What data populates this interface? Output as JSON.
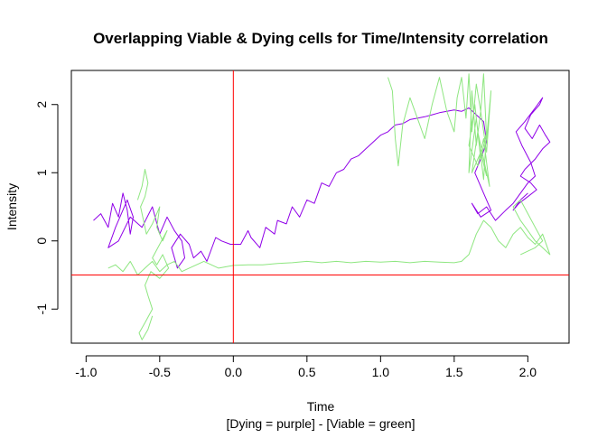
{
  "chart_data": {
    "type": "line",
    "title": "Overlapping Viable & Dying cells for Time/Intensity correlation",
    "xlabel": "Time",
    "xlabel_sub": "[Dying = purple] - [Viable = green]",
    "ylabel": "Intensity",
    "xlim": [
      -1.1,
      2.28
    ],
    "ylim": [
      -1.5,
      2.5
    ],
    "x_ticks": [
      -1.0,
      -0.5,
      0.0,
      0.5,
      1.0,
      1.5,
      2.0
    ],
    "x_tick_labels": [
      "-1.0",
      "-0.5",
      "0.0",
      "0.5",
      "1.0",
      "1.5",
      "2.0"
    ],
    "y_ticks": [
      -1,
      0,
      1,
      2
    ],
    "y_tick_labels": [
      "-1",
      "0",
      "1",
      "2"
    ],
    "grid": false,
    "reference_lines": [
      {
        "orientation": "vertical",
        "value": 0.0,
        "color": "#ff0000"
      },
      {
        "orientation": "horizontal",
        "value": -0.5,
        "color": "#ff0000"
      }
    ],
    "series": [
      {
        "color": "#9000e8",
        "x": [
          -0.95,
          -0.9,
          -0.85,
          -0.82,
          -0.78,
          -0.75,
          -0.72,
          -0.7,
          -0.68,
          -0.72,
          -0.8,
          -0.85,
          -0.78,
          -0.7,
          -0.62,
          -0.55,
          -0.5,
          -0.45,
          -0.4,
          -0.35,
          -0.33,
          -0.38,
          -0.42,
          -0.36,
          -0.3,
          -0.27,
          -0.22,
          -0.18,
          -0.12,
          -0.08,
          -0.02,
          0.05,
          0.1,
          0.12,
          0.18,
          0.22,
          0.28,
          0.3,
          0.36,
          0.4,
          0.45,
          0.5,
          0.55,
          0.6,
          0.65,
          0.7,
          0.75,
          0.8,
          0.85,
          0.9,
          0.95,
          1.0,
          1.05,
          1.1,
          1.15,
          1.2,
          1.25,
          1.3,
          1.35,
          1.4,
          1.45,
          1.5,
          1.55,
          1.6,
          1.65,
          1.7,
          1.72,
          1.68,
          1.64,
          1.7,
          1.75,
          1.68,
          1.62,
          1.66,
          1.72,
          1.78,
          1.85,
          1.9,
          1.95,
          2.0,
          2.05,
          2.02,
          1.96,
          1.92,
          1.98,
          2.05,
          2.1,
          2.08,
          2.02,
          1.98,
          2.03,
          2.08,
          2.12,
          2.15,
          2.1,
          2.05,
          1.98,
          1.95,
          2.02,
          2.06,
          2.0,
          1.94,
          1.9,
          1.95,
          2.0
        ],
        "y": [
          0.3,
          0.4,
          0.2,
          0.55,
          0.35,
          0.7,
          0.45,
          0.1,
          0.35,
          0.6,
          0.2,
          -0.1,
          0.0,
          0.35,
          0.2,
          0.5,
          0.1,
          0.35,
          0.15,
          0.0,
          -0.25,
          -0.4,
          -0.1,
          0.1,
          -0.05,
          -0.25,
          -0.15,
          -0.3,
          0.05,
          0.0,
          -0.05,
          -0.05,
          0.15,
          0.05,
          -0.1,
          0.2,
          0.1,
          0.3,
          0.25,
          0.5,
          0.35,
          0.6,
          0.55,
          0.85,
          0.8,
          1.0,
          1.05,
          1.2,
          1.25,
          1.35,
          1.45,
          1.55,
          1.6,
          1.7,
          1.72,
          1.78,
          1.8,
          1.82,
          1.85,
          1.88,
          1.9,
          1.92,
          1.9,
          1.95,
          1.85,
          1.75,
          1.45,
          1.2,
          1.0,
          0.7,
          0.45,
          0.35,
          0.55,
          0.4,
          0.5,
          0.3,
          0.45,
          0.55,
          0.7,
          0.85,
          0.95,
          1.15,
          1.4,
          1.6,
          1.75,
          1.95,
          2.1,
          2.0,
          1.85,
          1.65,
          1.5,
          1.7,
          1.55,
          1.45,
          1.35,
          1.2,
          1.05,
          0.95,
          0.85,
          0.75,
          0.65,
          0.55,
          0.45,
          0.6,
          0.7
        ]
      },
      {
        "color": "#8ee680",
        "x": [
          -0.85,
          -0.8,
          -0.75,
          -0.7,
          -0.65,
          -0.6,
          -0.55,
          -0.5,
          -0.45,
          -0.4,
          -0.35,
          -0.3,
          -0.25,
          -0.2,
          -0.15,
          -0.1,
          -0.05,
          0.0,
          0.1,
          0.2,
          0.3,
          0.4,
          0.5,
          0.6,
          0.7,
          0.8,
          0.9,
          1.0,
          1.1,
          1.2,
          1.3,
          1.4,
          1.5,
          1.55,
          1.6,
          1.65,
          1.7,
          1.75,
          1.8,
          1.85,
          1.9,
          1.95,
          2.0,
          2.05,
          2.1,
          2.15,
          2.1,
          2.05,
          2.0,
          1.95,
          1.9,
          1.95,
          2.0,
          2.05,
          2.1,
          2.05,
          2.0,
          1.95
        ],
        "y": [
          -0.4,
          -0.35,
          -0.45,
          -0.3,
          -0.5,
          -0.4,
          -0.3,
          -0.45,
          -0.35,
          -0.3,
          -0.45,
          -0.4,
          -0.35,
          -0.3,
          -0.35,
          -0.4,
          -0.38,
          -0.36,
          -0.35,
          -0.35,
          -0.33,
          -0.32,
          -0.3,
          -0.32,
          -0.3,
          -0.32,
          -0.3,
          -0.31,
          -0.3,
          -0.32,
          -0.3,
          -0.31,
          -0.32,
          -0.3,
          -0.2,
          0.1,
          0.3,
          0.2,
          0.0,
          -0.1,
          0.1,
          0.2,
          0.05,
          -0.05,
          0.1,
          -0.2,
          -0.1,
          0.0,
          0.15,
          0.3,
          0.5,
          0.6,
          0.4,
          0.2,
          0.0,
          -0.1,
          -0.15,
          -0.2
        ]
      },
      {
        "color": "#8ee680",
        "x": [
          -0.65,
          -0.62,
          -0.6,
          -0.58,
          -0.6,
          -0.63,
          -0.61,
          -0.59,
          -0.55,
          -0.5,
          -0.52,
          -0.48,
          -0.45,
          -0.5,
          -0.55,
          -0.52,
          -0.48,
          -0.44,
          -0.5,
          -0.56,
          -0.6,
          -0.58,
          -0.55,
          -0.6,
          -0.64,
          -0.62,
          -0.58,
          -0.55
        ],
        "y": [
          0.6,
          0.8,
          1.05,
          0.85,
          0.65,
          0.5,
          0.3,
          0.1,
          0.25,
          0.5,
          0.2,
          0.0,
          0.15,
          -0.05,
          -0.25,
          -0.35,
          -0.2,
          -0.4,
          -0.55,
          -0.45,
          -0.65,
          -0.8,
          -1.0,
          -1.2,
          -1.35,
          -1.45,
          -1.3,
          -1.1
        ]
      },
      {
        "color": "#8ee680",
        "x": [
          1.05,
          1.08,
          1.1,
          1.12,
          1.15,
          1.2,
          1.25,
          1.3,
          1.35,
          1.4,
          1.45,
          1.5,
          1.52,
          1.55,
          1.58,
          1.6,
          1.62,
          1.65,
          1.68,
          1.7,
          1.72,
          1.75,
          1.72,
          1.68,
          1.65,
          1.62,
          1.6,
          1.65,
          1.7,
          1.72,
          1.68,
          1.64,
          1.6,
          1.66,
          1.7,
          1.74,
          1.7,
          1.66,
          1.62,
          1.68,
          1.72
        ],
        "y": [
          2.4,
          2.2,
          1.5,
          1.1,
          1.7,
          2.1,
          1.8,
          1.5,
          2.0,
          2.4,
          1.9,
          1.6,
          2.1,
          2.4,
          1.8,
          2.45,
          1.6,
          2.3,
          1.9,
          2.45,
          1.5,
          2.2,
          1.3,
          1.9,
          1.4,
          2.2,
          1.0,
          1.8,
          0.9,
          1.6,
          1.2,
          2.0,
          1.4,
          1.1,
          1.5,
          0.8,
          1.2,
          1.6,
          1.0,
          1.3,
          0.95
        ]
      }
    ]
  }
}
